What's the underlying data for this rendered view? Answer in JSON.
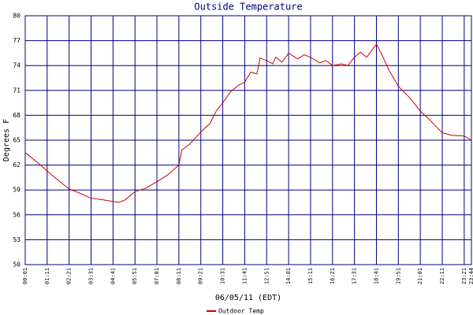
{
  "chart_data": {
    "type": "line",
    "title": "Outside Temperature",
    "y_label": "Degrees F",
    "x_label": "06/05/11 (EDT)",
    "xticks": [
      "00:01",
      "01:11",
      "02:21",
      "03:31",
      "04:41",
      "05:51",
      "07:01",
      "08:11",
      "09:21",
      "10:31",
      "11:41",
      "12:51",
      "14:01",
      "15:11",
      "16:21",
      "17:31",
      "18:41",
      "19:51",
      "21:01",
      "22:11",
      "23:21",
      "23:44"
    ],
    "ylim": [
      50,
      80
    ],
    "yticks": [
      50,
      53,
      56,
      59,
      62,
      65,
      68,
      71,
      74,
      77,
      80
    ],
    "grid": true,
    "legend": "bottom-left",
    "x": [
      "00:01",
      "00:40",
      "01:11",
      "01:45",
      "02:21",
      "02:50",
      "03:31",
      "04:10",
      "04:41",
      "05:00",
      "05:20",
      "05:51",
      "06:25",
      "07:01",
      "07:35",
      "08:11",
      "08:20",
      "08:45",
      "09:21",
      "09:50",
      "10:10",
      "10:31",
      "10:55",
      "11:20",
      "11:41",
      "12:00",
      "12:20",
      "12:30",
      "12:51",
      "13:10",
      "13:20",
      "13:40",
      "14:01",
      "14:30",
      "14:50",
      "15:11",
      "15:40",
      "16:00",
      "16:21",
      "16:50",
      "17:10",
      "17:31",
      "17:50",
      "18:10",
      "18:30",
      "18:41",
      "19:00",
      "19:20",
      "19:51",
      "20:30",
      "21:01",
      "21:30",
      "22:00",
      "22:11",
      "22:40",
      "23:21",
      "23:44"
    ],
    "series": [
      {
        "name": "Outdoor Temp",
        "color": "#cc0000",
        "values": [
          63.5,
          62.3,
          61.3,
          60.2,
          59.1,
          58.7,
          58.0,
          57.8,
          57.6,
          57.5,
          57.8,
          58.8,
          59.2,
          60.0,
          60.8,
          62.0,
          63.8,
          64.5,
          66.0,
          67.0,
          68.5,
          69.5,
          70.8,
          71.6,
          72.0,
          73.2,
          73.0,
          74.9,
          74.6,
          74.2,
          75.0,
          74.4,
          75.5,
          74.8,
          75.3,
          75.0,
          74.3,
          74.6,
          74.0,
          74.2,
          74.0,
          75.0,
          75.6,
          75.0,
          76.0,
          76.6,
          75.2,
          73.5,
          71.5,
          70.0,
          68.5,
          67.5,
          66.3,
          65.9,
          65.6,
          65.5,
          65.0
        ]
      }
    ]
  }
}
